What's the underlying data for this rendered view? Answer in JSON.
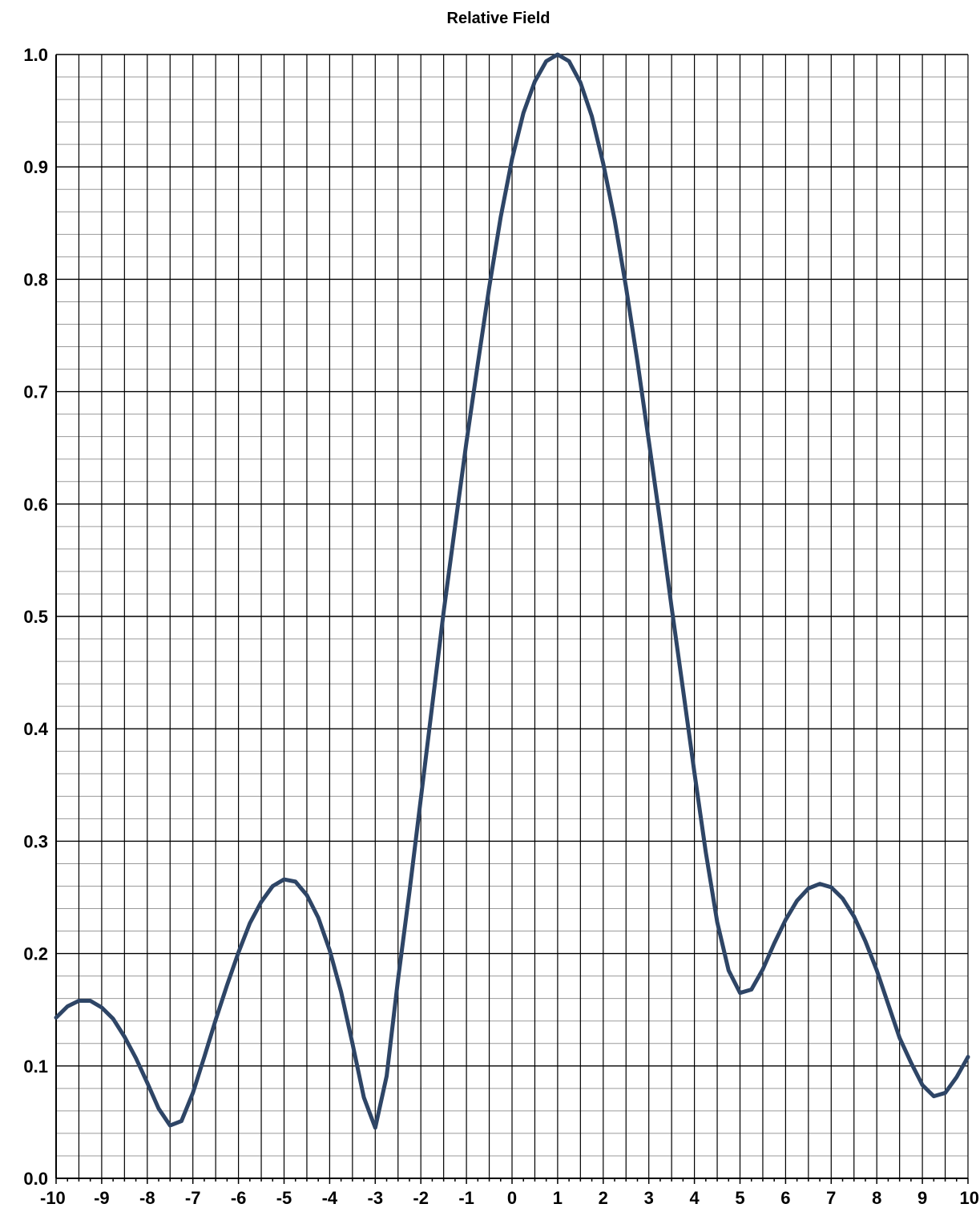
{
  "chart_data": {
    "type": "line",
    "title": "Relative Field",
    "xlabel": "",
    "ylabel": "",
    "xlim": [
      -10,
      10
    ],
    "ylim": [
      0,
      1
    ],
    "x_ticks": [
      -10,
      -9,
      -8,
      -7,
      -6,
      -5,
      -4,
      -3,
      -2,
      -1,
      0,
      1,
      2,
      3,
      4,
      5,
      6,
      7,
      8,
      9,
      10
    ],
    "y_ticks": [
      "0.0",
      "0.1",
      "0.2",
      "0.3",
      "0.4",
      "0.5",
      "0.6",
      "0.7",
      "0.8",
      "0.9",
      "1.0"
    ],
    "grid": true,
    "legend": "none",
    "line_color": "#2e4566",
    "series": [
      {
        "x": [
          -10,
          -9.75,
          -9.5,
          -9.25,
          -9,
          -8.75,
          -8.5,
          -8.25,
          -8,
          -7.75,
          -7.5,
          -7.25,
          -7,
          -6.75,
          -6.5,
          -6.25,
          -6,
          -5.75,
          -5.5,
          -5.25,
          -5,
          -4.75,
          -4.5,
          -4.25,
          -4,
          -3.75,
          -3.5,
          -3.25,
          -3,
          -2.75,
          -2.5,
          -2.25,
          -2,
          -1.75,
          -1.5,
          -1.25,
          -1,
          -0.75,
          -0.5,
          -0.25,
          0,
          0.25,
          0.5,
          0.75,
          1,
          1.25,
          1.5,
          1.75,
          2,
          2.25,
          2.5,
          2.75,
          3,
          3.25,
          3.5,
          3.75,
          4,
          4.25,
          4.5,
          4.75,
          5,
          5.25,
          5.5,
          5.75,
          6,
          6.25,
          6.5,
          6.75,
          7,
          7.25,
          7.5,
          7.75,
          8,
          8.25,
          8.5,
          8.75,
          9,
          9.25,
          9.5,
          9.75,
          10
        ],
        "values": [
          0.143,
          0.153,
          0.158,
          0.158,
          0.152,
          0.142,
          0.126,
          0.107,
          0.085,
          0.062,
          0.047,
          0.051,
          0.076,
          0.108,
          0.141,
          0.172,
          0.201,
          0.227,
          0.246,
          0.26,
          0.266,
          0.264,
          0.252,
          0.232,
          0.203,
          0.166,
          0.12,
          0.072,
          0.045,
          0.091,
          0.177,
          0.255,
          0.338,
          0.421,
          0.504,
          0.58,
          0.655,
          0.725,
          0.793,
          0.855,
          0.907,
          0.948,
          0.976,
          0.994,
          1.0,
          0.994,
          0.975,
          0.945,
          0.903,
          0.853,
          0.793,
          0.727,
          0.656,
          0.584,
          0.508,
          0.435,
          0.361,
          0.29,
          0.228,
          0.185,
          0.165,
          0.168,
          0.186,
          0.209,
          0.23,
          0.247,
          0.258,
          0.262,
          0.259,
          0.249,
          0.233,
          0.211,
          0.185,
          0.155,
          0.125,
          0.103,
          0.083,
          0.073,
          0.076,
          0.09,
          0.108
        ]
      }
    ]
  }
}
